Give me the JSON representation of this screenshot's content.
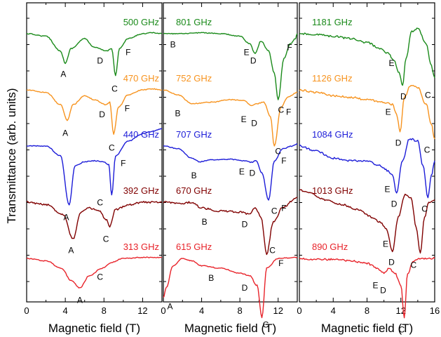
{
  "chart_data": {
    "type": "line",
    "ylabel": "Transmittance (arb. units)",
    "panels": [
      {
        "xlabel": "Magnetic field (T)",
        "xlim": [
          0,
          14
        ],
        "xticks": [
          0,
          4,
          8,
          12
        ],
        "tick_labels": [
          "0",
          "4",
          "8",
          "12"
        ],
        "series": [
          {
            "name": "500 GHz",
            "color": "#1a8a1a",
            "offset": 0.0,
            "x": [
              0,
              2,
              3.5,
              4,
              4.6,
              6,
              7,
              8.3,
              8.8,
              9.2,
              9.6,
              10.5,
              12,
              13,
              14
            ],
            "y": [
              0,
              -0.05,
              -0.35,
              -0.6,
              -0.3,
              -0.1,
              -0.28,
              -0.35,
              -0.3,
              -0.85,
              -0.3,
              -0.1,
              0.0,
              0.02,
              0.0
            ]
          },
          {
            "name": "470 GHz",
            "color": "#f7931e",
            "offset": 1.0,
            "x": [
              0,
              2,
              3.5,
              4.2,
              4.8,
              6,
              7,
              8.2,
              8.6,
              9.0,
              9.5,
              10.5,
              12,
              13,
              14
            ],
            "y": [
              0,
              -0.05,
              -0.3,
              -0.62,
              -0.3,
              -0.12,
              -0.2,
              -0.3,
              -0.25,
              -0.9,
              -0.35,
              -0.1,
              0.0,
              0.02,
              0.0
            ]
          },
          {
            "name": "440 GHz",
            "color": "#1c1cd8",
            "offset": 2.0,
            "x": [
              0,
              2,
              3.5,
              4.4,
              5.0,
              6,
              7,
              8.0,
              8.5,
              8.8,
              9.2,
              10.5,
              12,
              13,
              14
            ],
            "y": [
              0,
              0.0,
              -0.2,
              -1.2,
              -0.4,
              -0.32,
              -0.3,
              -0.32,
              -0.38,
              -1.0,
              -0.2,
              0.1,
              0.25,
              0.3,
              0.35
            ]
          },
          {
            "name": "392 GHz",
            "color": "#800000",
            "offset": 3.0,
            "x": [
              0,
              2,
              3.8,
              4.8,
              5.6,
              6.5,
              7.5,
              8.2,
              8.6,
              9.2,
              10.5,
              12,
              13,
              14
            ],
            "y": [
              0,
              -0.05,
              -0.25,
              -0.75,
              -0.2,
              -0.12,
              -0.18,
              -0.35,
              -0.5,
              -0.15,
              -0.05,
              0.0,
              0.0,
              0.0
            ]
          },
          {
            "name": "313 GHz",
            "color": "#e8232a",
            "offset": 4.0,
            "x": [
              0,
              2,
              3.6,
              4.6,
              5.5,
              6.5,
              7.8,
              8.8,
              10,
              12,
              14
            ],
            "y": [
              0,
              -0.05,
              -0.2,
              -0.45,
              -0.6,
              -0.35,
              -0.2,
              -0.08,
              0.0,
              0.02,
              0.02
            ]
          }
        ],
        "labels": [
          {
            "text": "A",
            "x": 3.8,
            "offset": 0.0,
            "y": -0.82
          },
          {
            "text": "D",
            "x": 7.6,
            "offset": 0.0,
            "y": -0.55
          },
          {
            "text": "C",
            "x": 9.1,
            "offset": 0.0,
            "y": -1.12
          },
          {
            "text": "F",
            "x": 10.5,
            "offset": 0.0,
            "y": -0.38
          },
          {
            "text": "A",
            "x": 4.0,
            "offset": 1.0,
            "y": -0.88
          },
          {
            "text": "D",
            "x": 7.8,
            "offset": 1.0,
            "y": -0.5
          },
          {
            "text": "C",
            "x": 8.8,
            "offset": 1.0,
            "y": -1.18
          },
          {
            "text": "F",
            "x": 10.4,
            "offset": 1.0,
            "y": -0.38
          },
          {
            "text": "A",
            "x": 4.1,
            "offset": 2.0,
            "y": -1.45
          },
          {
            "text": "C",
            "x": 7.6,
            "offset": 2.0,
            "y": -1.15
          },
          {
            "text": "F",
            "x": 10.0,
            "offset": 2.0,
            "y": -0.35
          },
          {
            "text": "C",
            "x": 8.2,
            "offset": 3.0,
            "y": -0.75
          },
          {
            "text": "A",
            "x": 4.6,
            "offset": 3.0,
            "y": -0.98
          },
          {
            "text": "A",
            "x": 5.5,
            "offset": 4.0,
            "y": -0.85
          },
          {
            "text": "C",
            "x": 7.6,
            "offset": 4.0,
            "y": -0.38
          }
        ]
      },
      {
        "xlabel": "Magnetic field (T)",
        "xlim": [
          0,
          14
        ],
        "xticks": [
          0,
          4,
          8,
          12
        ],
        "tick_labels": [
          "0",
          "4",
          "8",
          "12"
        ],
        "series": [
          {
            "name": "801 GHz",
            "color": "#1a8a1a",
            "offset": 0.0,
            "x": [
              0,
              2,
              4,
              6,
              8,
              9,
              9.6,
              10.2,
              11,
              11.6,
              12.0,
              12.6,
              13.3,
              13.8,
              14
            ],
            "y": [
              0,
              0.0,
              0.02,
              0.0,
              -0.05,
              -0.2,
              -0.4,
              -0.15,
              -0.35,
              -0.8,
              -1.35,
              -0.5,
              -0.2,
              -0.1,
              0.0
            ]
          },
          {
            "name": "752 GHz",
            "color": "#f7931e",
            "offset": 1.0,
            "x": [
              0,
              1.5,
              3,
              5,
              7,
              8.5,
              9.2,
              9.8,
              10.5,
              11.2,
              11.6,
              12.3,
              13,
              14
            ],
            "y": [
              0,
              -0.1,
              -0.28,
              -0.25,
              -0.2,
              -0.22,
              -0.32,
              -0.28,
              -0.25,
              -0.55,
              -1.15,
              -0.35,
              -0.15,
              -0.05
            ]
          },
          {
            "name": "707 GHz",
            "color": "#1c1cd8",
            "offset": 2.0,
            "x": [
              0,
              1.5,
              3.0,
              3.8,
              5,
              7,
              8.5,
              9.2,
              9.7,
              10.3,
              11.0,
              11.6,
              12.5,
              13.5,
              14
            ],
            "y": [
              0,
              -0.05,
              -0.25,
              -0.32,
              -0.28,
              -0.27,
              -0.3,
              -0.33,
              -0.3,
              -0.55,
              -1.1,
              -0.3,
              -0.05,
              0.0,
              0.05
            ]
          },
          {
            "name": "670 GHz",
            "color": "#800000",
            "offset": 3.0,
            "x": [
              0,
              2,
              3,
              4,
              6,
              8,
              9,
              9.6,
              10.2,
              10.8,
              11.5,
              12.5,
              14
            ],
            "y": [
              0,
              -0.02,
              0.0,
              -0.12,
              -0.18,
              -0.2,
              -0.25,
              -0.1,
              -0.3,
              -1.05,
              -0.4,
              -0.1,
              0.1
            ]
          },
          {
            "name": "615 GHz",
            "color": "#e8232a",
            "offset": 4.0,
            "x": [
              0,
              0.3,
              1,
              2,
              3,
              4,
              6,
              8,
              9,
              9.8,
              10.3,
              10.8,
              12,
              14
            ],
            "y": [
              -0.8,
              -0.6,
              -0.15,
              0.0,
              -0.05,
              -0.15,
              -0.2,
              -0.3,
              -0.35,
              -0.55,
              -1.2,
              -0.2,
              0.0,
              0.02
            ]
          }
        ],
        "labels": [
          {
            "text": "B",
            "x": 1.0,
            "offset": 0.0,
            "y": -0.22
          },
          {
            "text": "E",
            "x": 8.7,
            "offset": 0.0,
            "y": -0.38
          },
          {
            "text": "D",
            "x": 9.4,
            "offset": 0.0,
            "y": -0.55
          },
          {
            "text": "C",
            "x": 12.3,
            "offset": 0.0,
            "y": -1.55
          },
          {
            "text": "F",
            "x": 13.2,
            "offset": 0.0,
            "y": -0.28
          },
          {
            "text": "B",
            "x": 1.5,
            "offset": 1.0,
            "y": -0.48
          },
          {
            "text": "E",
            "x": 8.4,
            "offset": 1.0,
            "y": -0.6
          },
          {
            "text": "D",
            "x": 9.5,
            "offset": 1.0,
            "y": -0.68
          },
          {
            "text": "C",
            "x": 12.0,
            "offset": 1.0,
            "y": -1.25
          },
          {
            "text": "F",
            "x": 13.1,
            "offset": 1.0,
            "y": -0.45
          },
          {
            "text": "B",
            "x": 3.2,
            "offset": 2.0,
            "y": -0.6
          },
          {
            "text": "E",
            "x": 8.2,
            "offset": 2.0,
            "y": -0.52
          },
          {
            "text": "D",
            "x": 9.3,
            "offset": 2.0,
            "y": -0.55
          },
          {
            "text": "C",
            "x": 11.6,
            "offset": 2.0,
            "y": -1.32
          },
          {
            "text": "F",
            "x": 12.6,
            "offset": 2.0,
            "y": -0.3
          },
          {
            "text": "B",
            "x": 4.3,
            "offset": 3.0,
            "y": -0.4
          },
          {
            "text": "D",
            "x": 8.5,
            "offset": 3.0,
            "y": -0.45
          },
          {
            "text": "C",
            "x": 11.4,
            "offset": 3.0,
            "y": -0.98
          },
          {
            "text": "F",
            "x": 12.6,
            "offset": 3.0,
            "y": -0.12
          },
          {
            "text": "A",
            "x": 0.7,
            "offset": 4.0,
            "y": -0.98
          },
          {
            "text": "B",
            "x": 5.0,
            "offset": 4.0,
            "y": -0.4
          },
          {
            "text": "D",
            "x": 8.5,
            "offset": 4.0,
            "y": -0.6
          },
          {
            "text": "C",
            "x": 10.7,
            "offset": 4.0,
            "y": -1.35
          },
          {
            "text": "F",
            "x": 12.3,
            "offset": 4.0,
            "y": -0.1
          }
        ]
      },
      {
        "xlabel": "Magnetic field (T)",
        "xlim": [
          0,
          16
        ],
        "xticks": [
          0,
          4,
          8,
          12,
          16
        ],
        "tick_labels": [
          "0",
          "4",
          "8",
          "12",
          "16"
        ],
        "series": [
          {
            "name": "1181 GHz",
            "color": "#1a8a1a",
            "offset": 0.0,
            "x": [
              0,
              2,
              4,
              6,
              8,
              9.5,
              10.5,
              11.2,
              11.8,
              12.2,
              12.6,
              13.3,
              14,
              15,
              15.5,
              16
            ],
            "y": [
              0,
              -0.02,
              -0.05,
              -0.1,
              -0.18,
              -0.3,
              -0.4,
              -0.55,
              -0.8,
              -1.05,
              -0.5,
              0.05,
              0.1,
              -0.2,
              -0.6,
              -0.9
            ]
          },
          {
            "name": "1126 GHz",
            "color": "#f7931e",
            "offset": 1.0,
            "x": [
              0,
              2,
              4,
              6,
              8,
              10,
              11,
              11.5,
              11.9,
              12.4,
              13.2,
              14,
              15,
              15.6,
              16
            ],
            "y": [
              0,
              -0.05,
              -0.12,
              -0.15,
              -0.2,
              -0.25,
              -0.3,
              -0.5,
              -0.85,
              -0.15,
              0.1,
              0.05,
              -0.3,
              -0.7,
              -1.0
            ]
          },
          {
            "name": "1084 GHz",
            "color": "#1c1cd8",
            "offset": 2.0,
            "x": [
              0,
              2,
              4,
              6,
              8,
              9.5,
              10.5,
              11.0,
              11.5,
              12.2,
              13.0,
              14.0,
              14.6,
              15.2,
              15.6,
              16
            ],
            "y": [
              0,
              -0.1,
              -0.25,
              -0.3,
              -0.3,
              -0.4,
              -0.5,
              -0.6,
              -0.95,
              -0.3,
              0.15,
              0.1,
              -0.4,
              -1.05,
              -0.6,
              -0.3
            ]
          },
          {
            "name": "1013 GHz",
            "color": "#800000",
            "offset": 3.0,
            "x": [
              0,
              1,
              3,
              5,
              7,
              8.5,
              9.5,
              10.3,
              11.0,
              11.7,
              12.5,
              13.2,
              13.8,
              14.3,
              14.8,
              15.3,
              16
            ],
            "y": [
              0.25,
              0.2,
              0.05,
              -0.05,
              -0.15,
              -0.3,
              -0.4,
              -0.55,
              -1.0,
              -0.3,
              0.15,
              0.1,
              -0.5,
              -1.05,
              -0.3,
              0.0,
              0.05
            ]
          },
          {
            "name": "890 GHz",
            "color": "#e8232a",
            "offset": 4.0,
            "x": [
              0,
              2,
              4,
              6,
              8,
              9.2,
              10.0,
              10.6,
              11.3,
              12.0,
              12.4,
              12.8,
              13.5,
              14.5,
              16
            ],
            "y": [
              0,
              -0.02,
              -0.02,
              -0.05,
              -0.1,
              -0.2,
              -0.3,
              -0.2,
              -0.3,
              -0.55,
              -1.2,
              -0.3,
              -0.05,
              0.0,
              0.0
            ]
          }
        ],
        "labels": [
          {
            "text": "E",
            "x": 10.9,
            "offset": 0.0,
            "y": -0.6
          },
          {
            "text": "D",
            "x": 12.3,
            "offset": 0.0,
            "y": -1.28
          },
          {
            "text": "C",
            "x": 15.2,
            "offset": 0.0,
            "y": -1.25
          },
          {
            "text": "E",
            "x": 10.5,
            "offset": 1.0,
            "y": -0.45
          },
          {
            "text": "D",
            "x": 11.7,
            "offset": 1.0,
            "y": -1.08
          },
          {
            "text": "C",
            "x": 15.1,
            "offset": 1.0,
            "y": -1.22
          },
          {
            "text": "E",
            "x": 10.4,
            "offset": 2.0,
            "y": -0.88
          },
          {
            "text": "D",
            "x": 11.2,
            "offset": 2.0,
            "y": -1.18
          },
          {
            "text": "C",
            "x": 14.8,
            "offset": 2.0,
            "y": -1.28
          },
          {
            "text": "E",
            "x": 10.2,
            "offset": 3.0,
            "y": -0.85
          },
          {
            "text": "D",
            "x": 10.9,
            "offset": 3.0,
            "y": -1.22
          },
          {
            "text": "C",
            "x": 13.5,
            "offset": 3.0,
            "y": -1.28
          },
          {
            "text": "E",
            "x": 9.0,
            "offset": 4.0,
            "y": -0.55
          },
          {
            "text": "D",
            "x": 9.9,
            "offset": 4.0,
            "y": -0.65
          },
          {
            "text": "C",
            "x": 12.1,
            "offset": 4.0,
            "y": -1.45
          }
        ]
      }
    ]
  }
}
